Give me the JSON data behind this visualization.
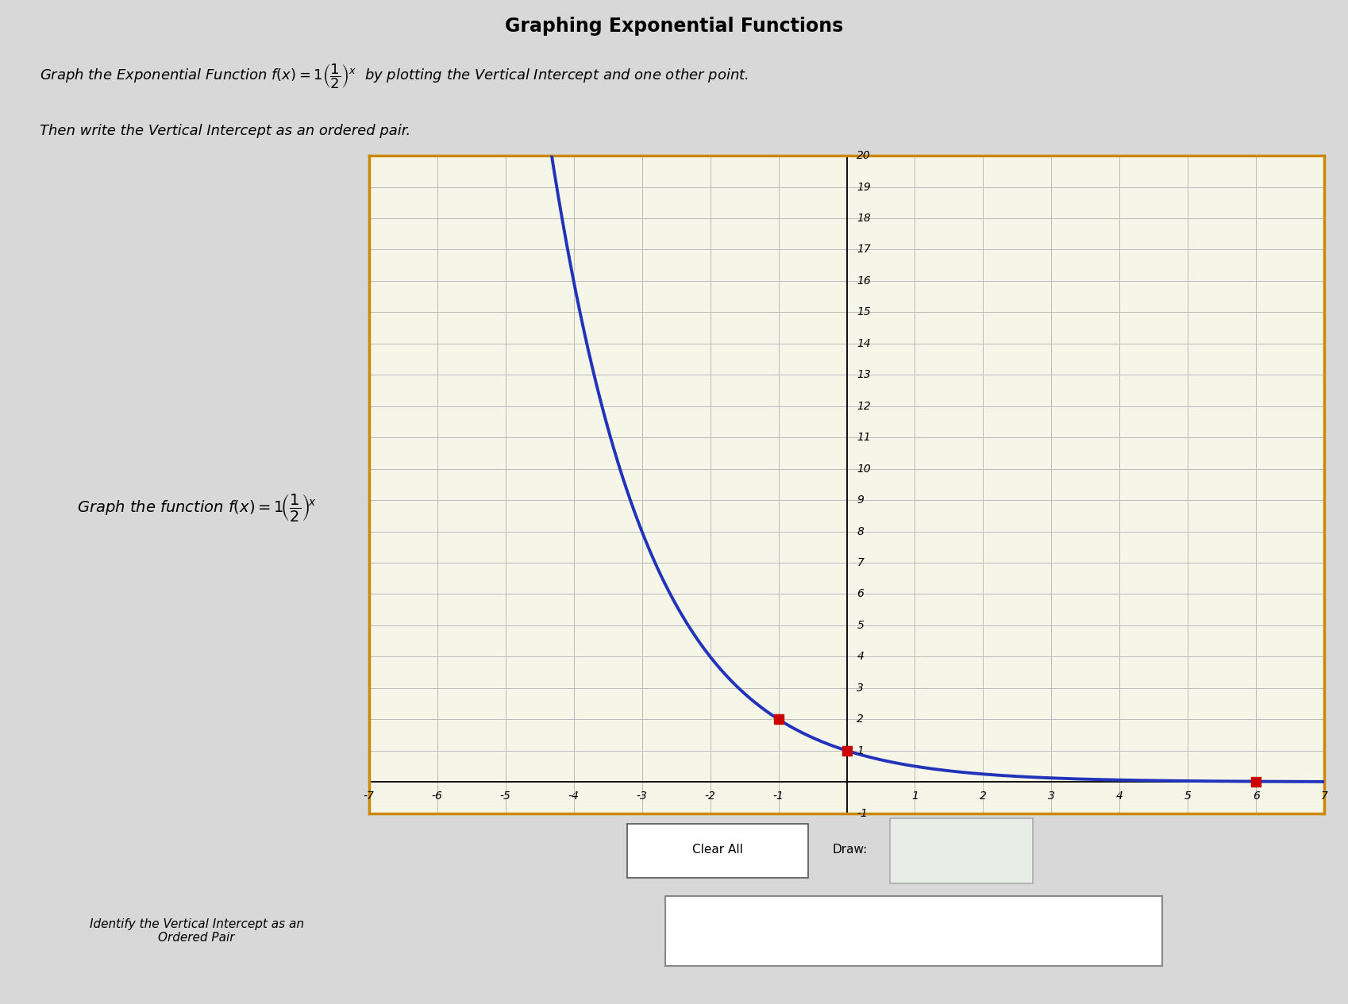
{
  "title": "Graphing Exponential Functions",
  "xmin": -7,
  "xmax": 7,
  "ymin": -1,
  "ymax": 20,
  "curve_color": "#2233bb",
  "point1": [
    0,
    1
  ],
  "point2": [
    -1,
    2
  ],
  "point3": [
    6,
    0.015625
  ],
  "point_color": "#cc0000",
  "grid_color": "#bbbbbb",
  "graph_bg": "#f5f5e8",
  "outer_bg": "#d8d8d8",
  "left_panel_bg": "#e0e0d8",
  "instr_bg": "#f0f0f0",
  "title_bg": "#e8e8e8",
  "border_color": "#cc8800",
  "panel_border": "#888888"
}
